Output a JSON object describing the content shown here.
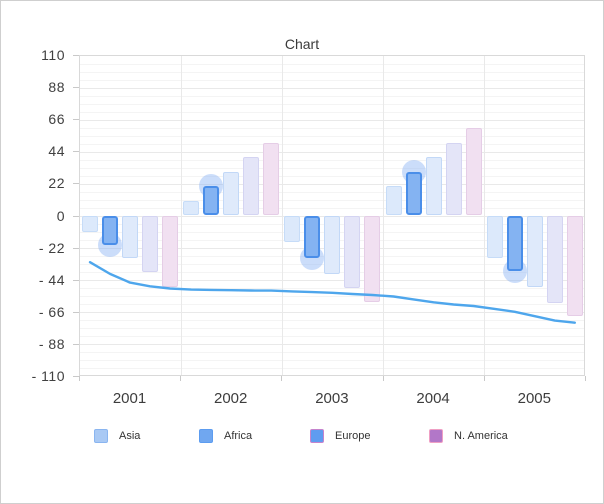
{
  "window": {
    "background": "#ffffff",
    "border_color": "#cfcfcf"
  },
  "chart_data": {
    "type": "bar",
    "subtype": "grouped-bars-with-line-overlay",
    "title": "Chart",
    "categories": [
      "2001",
      "2002",
      "2003",
      "2004",
      "2005"
    ],
    "series": [
      {
        "name": "Asia",
        "type": "bar",
        "fill": "#dce9fb",
        "border": "#c6dcf8",
        "values": [
          -11,
          10,
          -18,
          20,
          -29
        ]
      },
      {
        "name": "Africa",
        "type": "bar",
        "fill": "#84b3f2",
        "border": "#4a8ee9",
        "highlighted": true,
        "halo_color": "rgba(140,180,245,0.45)",
        "values": [
          -20,
          20,
          -29,
          30,
          -38
        ]
      },
      {
        "name": "Europe",
        "type": "bar",
        "fill": "#dfeafb",
        "border": "#c2d8f7",
        "values": [
          -29,
          30,
          -40,
          40,
          -49
        ]
      },
      {
        "name": "N. America",
        "type": "bar",
        "fill": "#e4e5f8",
        "border": "#d4d4f2",
        "values": [
          -39,
          40,
          -50,
          50,
          -60
        ]
      },
      {
        "name": "",
        "type": "bar",
        "fill": "#f1e0f1",
        "border": "#e5cde6",
        "values": [
          -49,
          50,
          -59,
          60,
          -69
        ]
      }
    ],
    "line_series": {
      "type": "line",
      "color": "#4ea6ec",
      "values": [
        -32,
        -40,
        -46,
        -48.5,
        -50,
        -50.8,
        -51,
        -51.2,
        -51.4,
        -51.5,
        -52,
        -52.5,
        -53,
        -53.8,
        -54.5,
        -55.5,
        -57.5,
        -59.5,
        -61,
        -62,
        -64,
        -66,
        -69,
        -72,
        -73.5
      ]
    },
    "y_axis": {
      "min": -110,
      "max": 110,
      "major_step": 22,
      "minor_per_major": 4,
      "tick_labels": [
        "110",
        "88",
        "66",
        "44",
        "22",
        "0",
        "- 22",
        "- 44",
        "- 66",
        "- 88",
        "- 110"
      ]
    },
    "grid": {
      "horizontal_minor": true,
      "horizontal_major": true,
      "vertical_major": true
    },
    "legend": {
      "position": "bottom",
      "items": [
        {
          "label": "Asia",
          "fill": "#a9c9f4",
          "border": "#8ab5f0"
        },
        {
          "label": "Africa",
          "fill": "#70a7f0",
          "border": "#5c9cf0"
        },
        {
          "label": "Europe",
          "fill": "#5f9cf0",
          "border": "#c583cd"
        },
        {
          "label": "N. America",
          "fill": "#b277c8",
          "border": "#ef9fc4"
        }
      ]
    }
  }
}
